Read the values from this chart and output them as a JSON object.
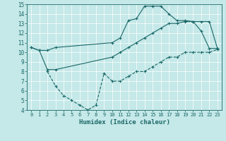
{
  "xlabel": "Humidex (Indice chaleur)",
  "xlim": [
    -0.5,
    23.5
  ],
  "ylim": [
    4,
    15
  ],
  "xticks": [
    0,
    1,
    2,
    3,
    4,
    5,
    6,
    7,
    8,
    9,
    10,
    11,
    12,
    13,
    14,
    15,
    16,
    17,
    18,
    19,
    20,
    21,
    22,
    23
  ],
  "yticks": [
    4,
    5,
    6,
    7,
    8,
    9,
    10,
    11,
    12,
    13,
    14,
    15
  ],
  "bg_color": "#c5e8e8",
  "line_color": "#1a6868",
  "line1_x": [
    0,
    1,
    2,
    3,
    10,
    11,
    12,
    13,
    14,
    15,
    16,
    17,
    18,
    19,
    20,
    21,
    22,
    23
  ],
  "line1_y": [
    10.5,
    10.2,
    10.2,
    10.5,
    11.0,
    11.5,
    13.3,
    13.5,
    14.8,
    14.8,
    14.8,
    14.0,
    13.3,
    13.3,
    13.2,
    12.2,
    10.4,
    10.4
  ],
  "line2_x": [
    0,
    1,
    2,
    3,
    10,
    11,
    12,
    13,
    14,
    15,
    16,
    17,
    18,
    19,
    20,
    21,
    22,
    23
  ],
  "line2_y": [
    10.5,
    10.2,
    8.2,
    8.2,
    9.5,
    10.0,
    10.5,
    11.0,
    11.5,
    12.0,
    12.5,
    13.0,
    13.0,
    13.2,
    13.2,
    13.2,
    13.2,
    10.4
  ],
  "line3_x": [
    2,
    3,
    4,
    5,
    6,
    7,
    8,
    9,
    10,
    11,
    12,
    13,
    14,
    15,
    16,
    17,
    18,
    19,
    20,
    21,
    22,
    23
  ],
  "line3_y": [
    8.0,
    6.5,
    5.5,
    5.0,
    4.5,
    4.0,
    4.5,
    7.8,
    7.0,
    7.0,
    7.5,
    8.0,
    8.0,
    8.5,
    9.0,
    9.5,
    9.5,
    10.0,
    10.0,
    10.0,
    10.0,
    10.3
  ]
}
